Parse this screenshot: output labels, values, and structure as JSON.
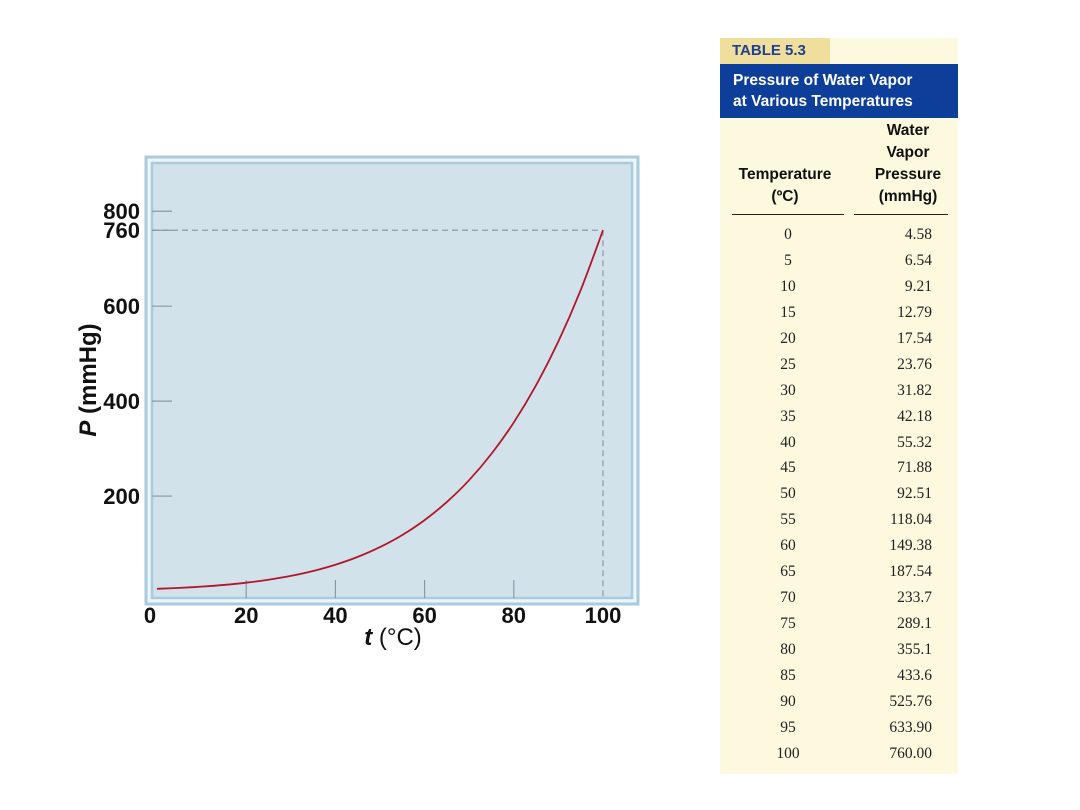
{
  "chart_data": {
    "type": "line",
    "title": "",
    "xlabel_italic": "t",
    "xlabel_rest": " (°C)",
    "ylabel_italic": "P",
    "ylabel_rest": " (mmHg)",
    "xlim": [
      0,
      100
    ],
    "ylim": [
      0,
      800
    ],
    "x_ticks": [
      0,
      20,
      40,
      60,
      80,
      100
    ],
    "y_ticks": [
      200,
      400,
      600,
      760,
      800
    ],
    "reference_y": 760,
    "reference_x": 100,
    "series": [
      {
        "color": "#b3162c",
        "x": [
          0,
          5,
          10,
          15,
          20,
          25,
          30,
          35,
          40,
          45,
          50,
          55,
          60,
          65,
          70,
          75,
          80,
          85,
          90,
          95,
          100
        ],
        "y": [
          4.58,
          6.54,
          9.21,
          12.79,
          17.54,
          23.76,
          31.82,
          42.18,
          55.32,
          71.88,
          92.51,
          118.04,
          149.38,
          187.54,
          233.7,
          289.1,
          355.1,
          433.6,
          525.76,
          633.9,
          760.0
        ]
      }
    ],
    "colors": {
      "plot_background": "#d1e2ea",
      "frame": "#a9cbe0",
      "curve": "#b3162c",
      "reference_line": "#8f9aa3"
    }
  },
  "table": {
    "tag": "TABLE 5.3",
    "title_line1": "Pressure of Water Vapor",
    "title_line2": "at Various Temperatures",
    "col1_header_line1": "Temperature",
    "col1_header_line2": "(ºC)",
    "col2_header_line1": "Water",
    "col2_header_line2": "Vapor",
    "col2_header_line3": "Pressure",
    "col2_header_line4": "(mmHg)",
    "rows": [
      [
        "0",
        "4.58"
      ],
      [
        "5",
        "6.54"
      ],
      [
        "10",
        "9.21"
      ],
      [
        "15",
        "12.79"
      ],
      [
        "20",
        "17.54"
      ],
      [
        "25",
        "23.76"
      ],
      [
        "30",
        "31.82"
      ],
      [
        "35",
        "42.18"
      ],
      [
        "40",
        "55.32"
      ],
      [
        "45",
        "71.88"
      ],
      [
        "50",
        "92.51"
      ],
      [
        "55",
        "118.04"
      ],
      [
        "60",
        "149.38"
      ],
      [
        "65",
        "187.54"
      ],
      [
        "70",
        "233.7"
      ],
      [
        "75",
        "289.1"
      ],
      [
        "80",
        "355.1"
      ],
      [
        "85",
        "433.6"
      ],
      [
        "90",
        "525.76"
      ],
      [
        "95",
        "633.90"
      ],
      [
        "100",
        "760.00"
      ]
    ],
    "colors": {
      "tag_bg": "#f0de9c",
      "tag_text": "#1f3f8f",
      "title_bg": "#0d3e9a",
      "body_bg": "#fdf9df"
    }
  }
}
